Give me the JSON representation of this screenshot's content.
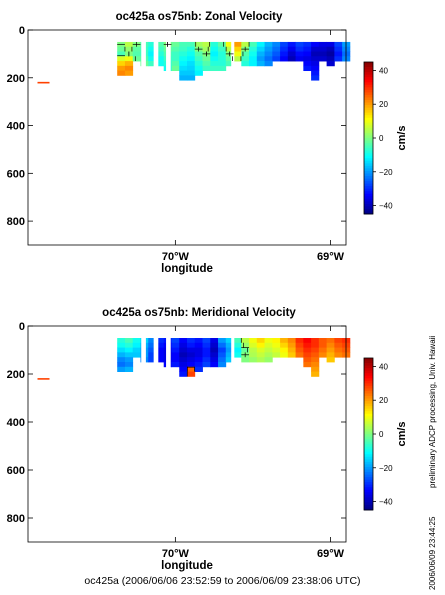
{
  "figure_caption": "oc425a (2006/06/06 23:52:59 to 2006/06/09 23:38:06 UTC)",
  "side_note_processing": "preliminary ADCP processing,   Univ. Hawaii",
  "side_note_timestamp": "2006/06/09 23:44:25",
  "colormap": [
    "#00007f",
    "#0000ff",
    "#0080ff",
    "#00ffff",
    "#80ff80",
    "#ffff00",
    "#ff8000",
    "#ff0000",
    "#7f0000"
  ],
  "chart_data": [
    {
      "type": "heatmap",
      "title": "oc425a os75nb: Zonal Velocity",
      "xlabel": "longitude",
      "ylabel": "",
      "xlim": [
        -70.95,
        -68.9
      ],
      "ylim": [
        900,
        0
      ],
      "x_ticks": [
        -70,
        -69
      ],
      "x_tick_labels": [
        "70°W",
        "69°W"
      ],
      "y_ticks": [
        0,
        200,
        400,
        600,
        800
      ],
      "y_tick_labels": [
        "0",
        "200",
        "400",
        "600",
        "800"
      ],
      "colorbar": {
        "label": "cm/s",
        "range": [
          -45,
          45
        ],
        "ticks": [
          -40,
          -20,
          0,
          20,
          40
        ],
        "tick_labels": [
          "−40",
          "−20",
          "0",
          "20",
          "40"
        ]
      },
      "longitudes": [
        -70.35,
        -70.3,
        -70.25,
        -70.2,
        -70.15,
        -70.1,
        -70.05,
        -70.0,
        -69.95,
        -69.9,
        -69.85,
        -69.8,
        -69.75,
        -69.7,
        -69.65,
        -69.6,
        -69.55,
        -69.5,
        -69.45,
        -69.4,
        -69.35,
        -69.3,
        -69.25,
        -69.2,
        -69.15,
        -69.1,
        -69.05,
        -69.0,
        -68.95,
        -68.9
      ],
      "depths": [
        60,
        80,
        100,
        120,
        140,
        160,
        180,
        200
      ],
      "values": [
        [
          0,
          5,
          0,
          -5,
          -8,
          -4,
          0,
          -2,
          -5,
          -5,
          3,
          5,
          -8,
          -3,
          10,
          20,
          5,
          -5,
          -12,
          -18,
          -22,
          -28,
          -32,
          -28,
          -30,
          -34,
          -36,
          -36,
          -28,
          -20
        ],
        [
          -2,
          2,
          -3,
          -6,
          -10,
          -6,
          -2,
          -4,
          -6,
          -8,
          0,
          3,
          -10,
          -6,
          5,
          15,
          0,
          -8,
          -15,
          -20,
          -24,
          -30,
          -35,
          -30,
          -32,
          -38,
          -38,
          -40,
          -30,
          -22
        ],
        [
          -5,
          0,
          -4,
          -6,
          -12,
          -8,
          -4,
          -6,
          -8,
          -10,
          -4,
          0,
          -12,
          -8,
          0,
          10,
          -4,
          -10,
          -18,
          -22,
          -26,
          -32,
          -38,
          -33,
          -34,
          -40,
          -40,
          -42,
          -32,
          -24
        ],
        [
          8,
          10,
          -2,
          -4,
          -10,
          -10,
          -6,
          -6,
          -10,
          -12,
          -6,
          -2,
          -10,
          -8,
          -3,
          5,
          -6,
          -12,
          -20,
          -24,
          -28,
          -34,
          -40,
          -35,
          -36,
          -38,
          -38,
          -40,
          -30,
          -22
        ],
        [
          15,
          18,
          0,
          -2,
          -6,
          -10,
          -8,
          -4,
          -12,
          -14,
          -8,
          -4,
          -8,
          -8,
          -5,
          2,
          -8,
          -12,
          -18,
          -22,
          -26,
          -30,
          -36,
          -34,
          -34,
          -36,
          -36,
          -38,
          -28,
          -20
        ],
        [
          20,
          22,
          5,
          0,
          -4,
          -8,
          -10,
          -2,
          -14,
          -15,
          -10,
          -6,
          -6,
          -6,
          -6,
          0,
          -6,
          -10,
          -16,
          -20,
          -24,
          -28,
          -34,
          -32,
          -32,
          -34,
          -34,
          -36,
          -26,
          -18
        ],
        [
          22,
          20,
          8,
          2,
          -2,
          -6,
          -8,
          -4,
          -16,
          -16,
          -12,
          -8,
          -6,
          -5,
          -6,
          -2,
          -4,
          -8,
          -14,
          -18,
          -22,
          -26,
          -30,
          -30,
          -30,
          -32,
          -32,
          -34,
          -24,
          -16
        ],
        [
          18,
          15,
          6,
          0,
          -4,
          -6,
          -10,
          -8,
          -18,
          -18,
          -14,
          -10,
          -8,
          -6,
          -5,
          -4,
          -6,
          -8,
          -12,
          -16,
          -20,
          -24,
          -28,
          -28,
          -28,
          -30,
          -30,
          -30,
          -22,
          -14
        ]
      ],
      "mask": [
        [
          1,
          1,
          1,
          1,
          1,
          1,
          1,
          1,
          1,
          1,
          1,
          1,
          1,
          1,
          1,
          1,
          1,
          1,
          1,
          1,
          1,
          1,
          1,
          1,
          1,
          1,
          1,
          1,
          1,
          1
        ],
        [
          1,
          1,
          1,
          1,
          1,
          1,
          1,
          1,
          1,
          1,
          1,
          1,
          1,
          1,
          1,
          1,
          1,
          1,
          1,
          1,
          1,
          1,
          1,
          1,
          1,
          1,
          1,
          1,
          1,
          1
        ],
        [
          1,
          1,
          1,
          1,
          1,
          1,
          1,
          1,
          1,
          1,
          1,
          1,
          1,
          1,
          1,
          1,
          1,
          1,
          1,
          1,
          1,
          1,
          1,
          1,
          1,
          1,
          1,
          1,
          1,
          1
        ],
        [
          1,
          1,
          1,
          1,
          1,
          1,
          1,
          1,
          1,
          1,
          1,
          1,
          1,
          1,
          1,
          1,
          1,
          1,
          1,
          1,
          1,
          1,
          1,
          1,
          1,
          1,
          1,
          1,
          1,
          1
        ],
        [
          1,
          1,
          0,
          1,
          1,
          1,
          1,
          1,
          1,
          1,
          1,
          1,
          1,
          1,
          1,
          0,
          1,
          1,
          1,
          1,
          0,
          0,
          0,
          0,
          1,
          1,
          0,
          1,
          0,
          0
        ],
        [
          1,
          1,
          0,
          0,
          0,
          0,
          1,
          1,
          1,
          1,
          1,
          1,
          1,
          1,
          0,
          0,
          0,
          0,
          0,
          0,
          0,
          0,
          0,
          0,
          1,
          1,
          0,
          0,
          0,
          0
        ],
        [
          1,
          1,
          0,
          0,
          0,
          0,
          0,
          0,
          1,
          1,
          1,
          0,
          0,
          0,
          0,
          0,
          0,
          0,
          0,
          0,
          0,
          0,
          0,
          0,
          0,
          1,
          0,
          0,
          0,
          0
        ],
        [
          0,
          0,
          0,
          0,
          0,
          0,
          0,
          0,
          1,
          1,
          0,
          0,
          0,
          0,
          0,
          0,
          0,
          0,
          0,
          0,
          0,
          0,
          0,
          0,
          0,
          1,
          0,
          0,
          0,
          0
        ]
      ],
      "gaps": [
        [
          -70.22,
          -70.19
        ],
        [
          -70.14,
          -70.11
        ],
        [
          -70.06,
          -70.03
        ],
        [
          -69.64,
          -69.62
        ]
      ],
      "isolated_marks": [
        {
          "x": -70.85,
          "y": 220,
          "value": 28
        }
      ]
    },
    {
      "type": "heatmap",
      "title": "oc425a os75nb: Meridional Velocity",
      "xlabel": "longitude",
      "ylabel": "",
      "xlim": [
        -70.95,
        -68.9
      ],
      "ylim": [
        900,
        0
      ],
      "x_ticks": [
        -70,
        -69
      ],
      "x_tick_labels": [
        "70°W",
        "69°W"
      ],
      "y_ticks": [
        0,
        200,
        400,
        600,
        800
      ],
      "y_tick_labels": [
        "0",
        "200",
        "400",
        "600",
        "800"
      ],
      "colorbar": {
        "label": "cm/s",
        "range": [
          -45,
          45
        ],
        "ticks": [
          -40,
          -20,
          0,
          20,
          40
        ],
        "tick_labels": [
          "−40",
          "−20",
          "0",
          "20",
          "40"
        ]
      },
      "longitudes": [
        -70.35,
        -70.3,
        -70.25,
        -70.2,
        -70.15,
        -70.1,
        -70.05,
        -70.0,
        -69.95,
        -69.9,
        -69.85,
        -69.8,
        -69.75,
        -69.7,
        -69.65,
        -69.6,
        -69.55,
        -69.5,
        -69.45,
        -69.4,
        -69.35,
        -69.3,
        -69.25,
        -69.2,
        -69.15,
        -69.1,
        -69.05,
        -69.0,
        -68.95,
        -68.9
      ],
      "depths": [
        60,
        80,
        100,
        120,
        140,
        160,
        180,
        200
      ],
      "values": [
        [
          -8,
          -5,
          -10,
          -15,
          -22,
          -30,
          -32,
          -28,
          -34,
          -30,
          -32,
          -28,
          -36,
          -20,
          -15,
          -5,
          5,
          10,
          15,
          10,
          12,
          18,
          22,
          30,
          34,
          30,
          26,
          24,
          28,
          30
        ],
        [
          -10,
          -8,
          -12,
          -18,
          -24,
          -32,
          -34,
          -30,
          -36,
          -32,
          -34,
          -30,
          -38,
          -24,
          -18,
          -8,
          2,
          8,
          12,
          8,
          10,
          15,
          20,
          28,
          32,
          30,
          26,
          22,
          26,
          28
        ],
        [
          -14,
          -12,
          -15,
          -20,
          -26,
          -34,
          -36,
          -32,
          -38,
          -36,
          -36,
          -32,
          -40,
          -28,
          -20,
          -12,
          -2,
          5,
          8,
          6,
          8,
          12,
          18,
          26,
          30,
          28,
          24,
          20,
          24,
          26
        ],
        [
          -18,
          -16,
          -16,
          -20,
          -28,
          -34,
          -36,
          -34,
          -40,
          -38,
          -36,
          -32,
          -38,
          -26,
          -18,
          -10,
          0,
          4,
          6,
          4,
          6,
          10,
          16,
          24,
          28,
          26,
          22,
          18,
          22,
          24
        ],
        [
          -22,
          -20,
          -18,
          -22,
          -28,
          -34,
          -36,
          -34,
          -38,
          -36,
          -34,
          -30,
          -36,
          -24,
          -16,
          -8,
          0,
          2,
          4,
          2,
          4,
          8,
          14,
          22,
          26,
          24,
          20,
          16,
          20,
          22
        ],
        [
          -24,
          -22,
          -18,
          -22,
          -28,
          -32,
          -34,
          -32,
          -36,
          -34,
          -32,
          -28,
          -34,
          -22,
          -14,
          -6,
          0,
          0,
          2,
          0,
          2,
          6,
          12,
          20,
          24,
          22,
          18,
          14,
          18,
          20
        ],
        [
          -20,
          -18,
          -16,
          -20,
          -26,
          -30,
          -32,
          -30,
          -34,
          25,
          -30,
          -26,
          -32,
          -20,
          -12,
          -4,
          0,
          0,
          0,
          0,
          0,
          4,
          10,
          18,
          22,
          20,
          16,
          12,
          16,
          18
        ],
        [
          -16,
          -14,
          -14,
          -18,
          -24,
          -28,
          -30,
          -28,
          -32,
          28,
          -28,
          -24,
          -30,
          -18,
          -10,
          -2,
          0,
          0,
          0,
          0,
          0,
          2,
          8,
          16,
          20,
          18,
          14,
          10,
          14,
          16
        ]
      ],
      "mask": [
        [
          1,
          1,
          1,
          1,
          1,
          1,
          1,
          1,
          1,
          1,
          1,
          1,
          1,
          1,
          1,
          1,
          1,
          1,
          1,
          1,
          1,
          1,
          1,
          1,
          1,
          1,
          1,
          1,
          1,
          1
        ],
        [
          1,
          1,
          1,
          1,
          1,
          1,
          1,
          1,
          1,
          1,
          1,
          1,
          1,
          1,
          1,
          1,
          1,
          1,
          1,
          1,
          1,
          1,
          1,
          1,
          1,
          1,
          1,
          1,
          1,
          1
        ],
        [
          1,
          1,
          1,
          1,
          1,
          1,
          1,
          1,
          1,
          1,
          1,
          1,
          1,
          1,
          1,
          1,
          1,
          1,
          1,
          1,
          1,
          1,
          1,
          1,
          1,
          1,
          1,
          1,
          1,
          1
        ],
        [
          1,
          1,
          1,
          1,
          1,
          1,
          1,
          1,
          1,
          1,
          1,
          1,
          1,
          1,
          1,
          1,
          1,
          1,
          1,
          1,
          1,
          1,
          1,
          1,
          1,
          1,
          1,
          1,
          1,
          1
        ],
        [
          1,
          1,
          0,
          1,
          1,
          1,
          1,
          1,
          1,
          1,
          1,
          1,
          1,
          1,
          1,
          0,
          1,
          1,
          1,
          1,
          0,
          0,
          0,
          0,
          1,
          1,
          0,
          1,
          0,
          0
        ],
        [
          1,
          1,
          0,
          0,
          0,
          0,
          1,
          1,
          1,
          1,
          1,
          1,
          1,
          1,
          0,
          0,
          0,
          0,
          0,
          0,
          0,
          0,
          0,
          0,
          1,
          1,
          0,
          0,
          0,
          0
        ],
        [
          1,
          1,
          0,
          0,
          0,
          0,
          0,
          0,
          1,
          1,
          1,
          0,
          0,
          0,
          0,
          0,
          0,
          0,
          0,
          0,
          0,
          0,
          0,
          0,
          0,
          1,
          0,
          0,
          0,
          0
        ],
        [
          0,
          0,
          0,
          0,
          0,
          0,
          0,
          0,
          1,
          1,
          0,
          0,
          0,
          0,
          0,
          0,
          0,
          0,
          0,
          0,
          0,
          0,
          0,
          0,
          0,
          1,
          0,
          0,
          0,
          0
        ]
      ],
      "gaps": [
        [
          -70.22,
          -70.19
        ],
        [
          -70.14,
          -70.11
        ],
        [
          -70.06,
          -70.03
        ],
        [
          -69.64,
          -69.62
        ]
      ],
      "isolated_marks": [
        {
          "x": -70.85,
          "y": 220,
          "value": 28
        }
      ]
    }
  ]
}
